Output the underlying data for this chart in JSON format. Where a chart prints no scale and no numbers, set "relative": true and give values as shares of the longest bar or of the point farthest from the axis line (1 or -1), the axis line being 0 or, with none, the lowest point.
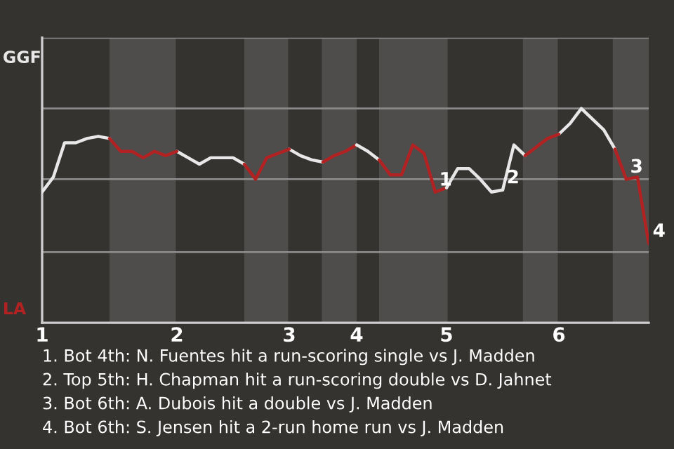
{
  "chart_data": {
    "type": "line",
    "relative": true,
    "tick_labels": "x",
    "marker": "none",
    "line_style": "solid",
    "categories": [
      "1",
      null,
      null,
      null,
      null,
      null,
      null,
      null,
      null,
      null,
      null,
      null,
      "2",
      null,
      null,
      null,
      null,
      null,
      null,
      null,
      null,
      null,
      "3",
      null,
      null,
      null,
      null,
      null,
      "4",
      null,
      null,
      null,
      null,
      null,
      null,
      null,
      "5",
      null,
      null,
      null,
      null,
      null,
      null,
      null,
      null,
      null,
      "6",
      null,
      null,
      null,
      null,
      null,
      null,
      null,
      null
    ],
    "ref_lines": [
      {
        "axis": "y",
        "value": 0.33,
        "label": null,
        "color": "#8a8a8a"
      },
      {
        "axis": "y",
        "value": 0.67,
        "label": null,
        "color": "#8a8a8a"
      },
      {
        "axis": "y",
        "value": 1.0,
        "label": null,
        "color": "#8a8a8a"
      },
      {
        "axis": "y",
        "value": 1.33,
        "label": null,
        "color": "#8a8a8a"
      }
    ],
    "series": [
      {
        "color": "#e8e8e8",
        "values": [
          0.61,
          0.68,
          0.84,
          0.84,
          0.86,
          0.87,
          0.86,
          null,
          null,
          null,
          null,
          null,
          0.8,
          0.77,
          0.74,
          0.77,
          0.77,
          0.77,
          0.74,
          null,
          null,
          null,
          0.81,
          0.78,
          0.76,
          0.75,
          null,
          null,
          null,
          null,
          null,
          null,
          null,
          null,
          null,
          null,
          null,
          null,
          null,
          null,
          null,
          0.62,
          0.83,
          0.78,
          null,
          null,
          0.88,
          0.93,
          1.0,
          0.95,
          0.9,
          0.81,
          null,
          null,
          null
        ]
      },
      {
        "color": "#b22222",
        "values": [
          null,
          null,
          null,
          null,
          null,
          null,
          0.86,
          0.8,
          0.8,
          0.77,
          0.8,
          0.78,
          0.8,
          null,
          null,
          null,
          null,
          null,
          0.74,
          0.67,
          0.77,
          0.79,
          0.81,
          null,
          null,
          0.75,
          0.78,
          0.8,
          0.83,
          null,
          null,
          null,
          null,
          null,
          null,
          0.61,
          0.63,
          null,
          null,
          null,
          null,
          null,
          null,
          0.78,
          0.82,
          0.86,
          0.88,
          null,
          null,
          null,
          null,
          null,
          null,
          null,
          null
        ]
      },
      {
        "color": "#e8e8e8",
        "values": [
          null,
          null,
          null,
          null,
          null,
          null,
          null,
          null,
          null,
          null,
          null,
          null,
          null,
          null,
          null,
          null,
          null,
          null,
          null,
          null,
          null,
          null,
          null,
          null,
          null,
          null,
          null,
          null,
          0.83,
          0.8,
          0.76,
          null,
          null,
          null,
          null,
          null,
          null,
          null,
          null,
          null,
          null,
          null,
          null,
          null,
          null,
          null,
          null,
          null,
          null,
          null,
          null,
          null,
          null,
          null,
          null
        ]
      },
      {
        "name": "1",
        "color": "#b22222",
        "values": [
          null,
          null,
          null,
          null,
          null,
          null,
          null,
          null,
          null,
          null,
          null,
          null,
          null,
          null,
          null,
          null,
          null,
          null,
          null,
          null,
          null,
          null,
          null,
          null,
          null,
          null,
          null,
          null,
          null,
          null,
          0.76,
          0.69,
          0.69,
          0.83,
          0.79,
          0.61,
          null,
          null,
          null,
          null,
          null,
          null,
          null,
          null,
          null,
          null,
          null,
          null,
          null,
          null,
          null,
          null,
          null,
          null,
          null
        ]
      },
      {
        "name": "2",
        "color": "#e6e6e6",
        "values": [
          null,
          null,
          null,
          null,
          null,
          null,
          null,
          null,
          null,
          null,
          null,
          null,
          null,
          null,
          null,
          null,
          null,
          null,
          null,
          null,
          null,
          null,
          null,
          null,
          null,
          null,
          null,
          null,
          null,
          null,
          null,
          null,
          null,
          null,
          null,
          null,
          0.63,
          0.72,
          0.72,
          0.67,
          0.61,
          0.62,
          null,
          null,
          null,
          null,
          null,
          null,
          null,
          null,
          null,
          null,
          null,
          null,
          null
        ]
      },
      {
        "name": "3",
        "color": "#b22222",
        "values": [
          null,
          null,
          null,
          null,
          null,
          null,
          null,
          null,
          null,
          null,
          null,
          null,
          null,
          null,
          null,
          null,
          null,
          null,
          null,
          null,
          null,
          null,
          null,
          null,
          null,
          null,
          null,
          null,
          null,
          null,
          null,
          null,
          null,
          null,
          null,
          null,
          null,
          null,
          null,
          null,
          null,
          null,
          null,
          null,
          null,
          null,
          null,
          null,
          null,
          null,
          null,
          0.81,
          0.67,
          null,
          null
        ]
      },
      {
        "name": "4",
        "color": "#b22222",
        "values": [
          null,
          null,
          null,
          null,
          null,
          null,
          null,
          null,
          null,
          null,
          null,
          null,
          null,
          null,
          null,
          null,
          null,
          null,
          null,
          null,
          null,
          null,
          null,
          null,
          null,
          null,
          null,
          null,
          null,
          null,
          null,
          null,
          null,
          null,
          null,
          null,
          null,
          null,
          null,
          null,
          null,
          null,
          null,
          null,
          null,
          null,
          null,
          null,
          null,
          null,
          null,
          null,
          0.67,
          0.68,
          0.37
        ]
      }
    ],
    "annotations": [
      "GGF",
      "LA",
      "1. Bot 4th: N. Fuentes hit a run-scoring single vs J. Madden",
      "2. Top 5th: H. Chapman hit a run-scoring double vs D. Jahnet",
      "3. Bot 6th: A. Dubois hit a double vs J. Madden",
      "4. Bot 6th: S. Jensen hit a 2-run home run vs J. Madden"
    ]
  }
}
